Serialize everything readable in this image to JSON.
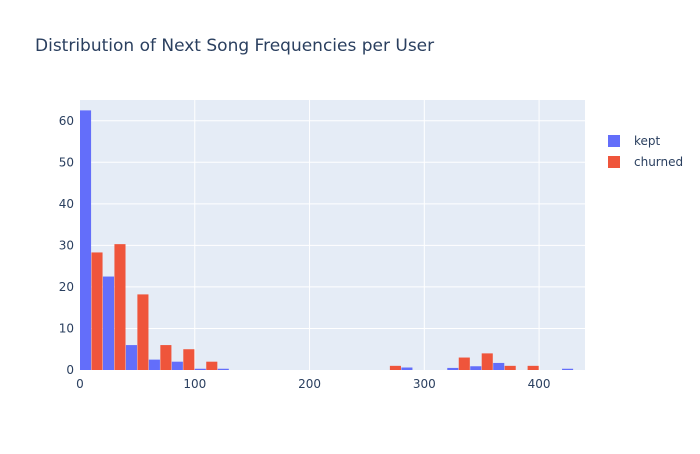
{
  "chart_data": {
    "type": "bar",
    "title": "Distribution of Next Song Frequencies per User",
    "xlabel": "",
    "ylabel": "",
    "xlim": [
      0,
      440
    ],
    "ylim": [
      0,
      65
    ],
    "xticks": [
      0,
      100,
      200,
      300,
      400
    ],
    "yticks": [
      0,
      10,
      20,
      30,
      40,
      50,
      60
    ],
    "grid": true,
    "legend_position": "top-right",
    "bin_edges": [
      0,
      20,
      40,
      60,
      80,
      100,
      120,
      140,
      160,
      180,
      200,
      220,
      240,
      260,
      280,
      300,
      320,
      340,
      360,
      380,
      400,
      420,
      440
    ],
    "series": [
      {
        "name": "kept",
        "color": "#636efa",
        "values": [
          62.5,
          22.5,
          6,
          2.5,
          2,
          0.3,
          0.3,
          0,
          0,
          0,
          0,
          0,
          0,
          0,
          0.6,
          0,
          0.5,
          0.9,
          1.7,
          0,
          0,
          0.3
        ]
      },
      {
        "name": "churned",
        "color": "#ef553b",
        "values": [
          28.3,
          30.3,
          18.2,
          6,
          5,
          2,
          0,
          0,
          0,
          0,
          0,
          0,
          0,
          1,
          0,
          0,
          3,
          4,
          1,
          1,
          0,
          0
        ]
      }
    ]
  }
}
